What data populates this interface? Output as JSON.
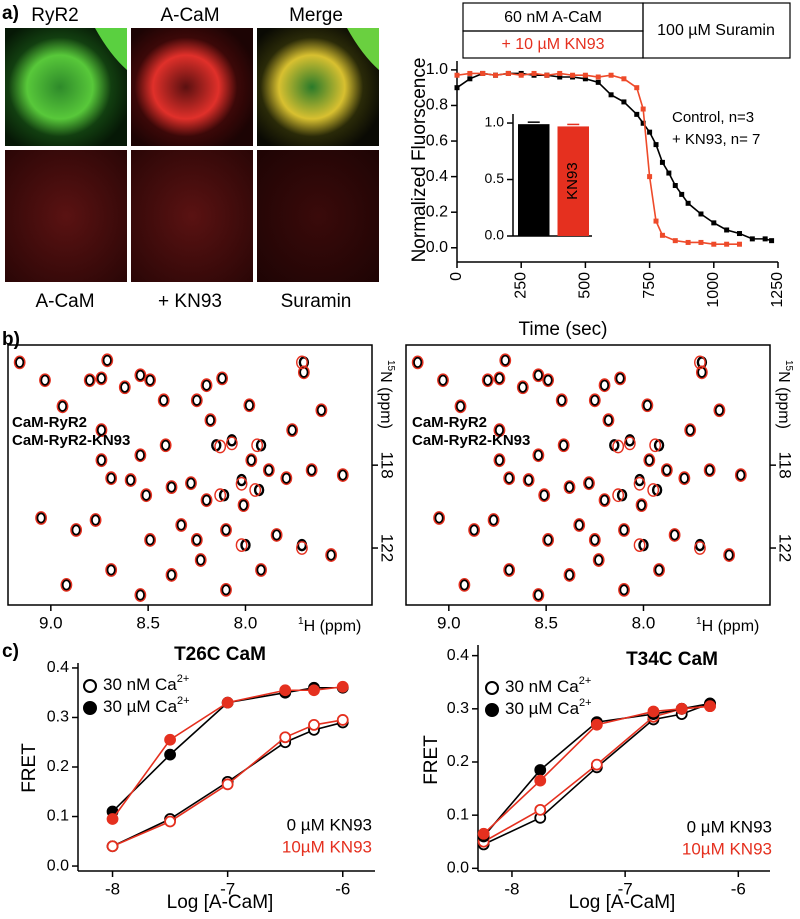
{
  "panel_labels": [
    "a)",
    "b)",
    "c)"
  ],
  "images": {
    "top_labels": [
      "RyR2",
      "A-CaM",
      "Merge"
    ],
    "bottom_labels": [
      "A-CaM",
      "+ KN93",
      "Suramin"
    ]
  },
  "chart_data": [
    {
      "type": "line",
      "x_label": "Time (sec)",
      "y_label": "Normalized Fluorscence",
      "marker": "square",
      "annotations": [
        "60 nM A-CaM",
        "+ 10 µM KN93",
        "100 µM Suramin"
      ],
      "xlim": [
        0,
        1250
      ],
      "xticks": [
        0,
        250,
        500,
        750,
        1000,
        1250
      ],
      "ylim": [
        -0.08,
        1.05
      ],
      "yticks": [
        {
          "value": 0,
          "label": "0.0"
        },
        0.2,
        0.4,
        0.6,
        0.8,
        {
          "value": 1,
          "label": "1.0"
        }
      ],
      "series": [
        {
          "name": "Control, n=3",
          "color": "#000000",
          "x": [
            0,
            50,
            100,
            150,
            200,
            250,
            300,
            350,
            400,
            450,
            500,
            550,
            600,
            650,
            700,
            725,
            750,
            775,
            800,
            825,
            850,
            875,
            900,
            950,
            1000,
            1050,
            1100,
            1150,
            1200,
            1225
          ],
          "values": [
            0.9,
            0.95,
            0.98,
            0.97,
            0.98,
            0.98,
            0.97,
            0.97,
            0.96,
            0.96,
            0.95,
            0.93,
            0.86,
            0.82,
            0.75,
            0.7,
            0.65,
            0.58,
            0.48,
            0.42,
            0.35,
            0.3,
            0.25,
            0.19,
            0.14,
            0.1,
            0.08,
            0.05,
            0.05,
            0.04
          ]
        },
        {
          "name": "+ KN93, n= 7",
          "color": "#ee4a2a",
          "x": [
            0,
            50,
            100,
            150,
            200,
            250,
            300,
            350,
            400,
            450,
            500,
            550,
            600,
            650,
            700,
            725,
            750,
            775,
            800,
            850,
            900,
            950,
            1000,
            1050,
            1100
          ],
          "values": [
            0.97,
            0.98,
            0.98,
            0.97,
            0.98,
            0.97,
            0.98,
            0.97,
            0.98,
            0.97,
            0.97,
            0.96,
            0.97,
            0.95,
            0.9,
            0.78,
            0.4,
            0.15,
            0.07,
            0.04,
            0.03,
            0.03,
            0.02,
            0.02,
            0.02
          ]
        }
      ]
    },
    {
      "type": "bar",
      "categories": [
        "Control",
        "KN93"
      ],
      "values": [
        0.99,
        0.97
      ],
      "colors": [
        "#000000",
        "#e5301f"
      ],
      "ylim": [
        0,
        1.08
      ],
      "yticks": [
        {
          "value": 0,
          "label": "0.0"
        },
        0.5,
        {
          "value": 1,
          "label": "1.0"
        }
      ]
    },
    {
      "type": "scatter",
      "x_label": {
        "sup": "1",
        "text": "H (ppm)"
      },
      "y_label": {
        "sup": "15",
        "text": "N (ppm)"
      },
      "xlim": [
        9.22,
        7.35
      ],
      "xticks": [
        {
          "value": 9,
          "label": "9.0"
        },
        8.5,
        {
          "value": 8,
          "label": "8.0"
        }
      ],
      "ylim": [
        124.75,
        112.2
      ],
      "yticks": [
        118,
        122
      ],
      "series": [
        {
          "name": "CaM-RyR2",
          "color": "#000000",
          "x": [
            9.16,
            9.03,
            8.8,
            8.74,
            8.71,
            8.62,
            8.54,
            8.49,
            8.2,
            8.12,
            7.7,
            7.7,
            8.94,
            8.74,
            8.42,
            8.25,
            8.18,
            7.98,
            8.54,
            8.41,
            8.15,
            8.07,
            7.97,
            7.92,
            8.69,
            8.59,
            8.51,
            8.38,
            8.28,
            8.2,
            8.11,
            8.02,
            8.01,
            7.93,
            7.88,
            7.79,
            7.66,
            7.5,
            8.87,
            8.77,
            8.49,
            8.33,
            8.25,
            8.1,
            8.0,
            7.84,
            7.71,
            8.69,
            8.38,
            8.23,
            7.92,
            8.92,
            8.54,
            8.1,
            7.56,
            9.05,
            7.61,
            7.76,
            8.74
          ],
          "values": [
            113.04,
            113.9,
            113.9,
            113.81,
            112.94,
            114.24,
            113.66,
            113.9,
            114.14,
            113.81,
            113.52,
            113.04,
            115.16,
            116.31,
            114.87,
            114.87,
            115.83,
            115.11,
            117.52,
            117.04,
            117.04,
            116.8,
            117.76,
            117.04,
            118.63,
            118.72,
            119.45,
            119.06,
            118.87,
            119.69,
            119.45,
            118.72,
            119.93,
            119.2,
            118.24,
            118.63,
            118.24,
            118.48,
            121.13,
            120.65,
            121.61,
            120.89,
            121.61,
            121.13,
            121.86,
            121.37,
            121.86,
            123.06,
            123.3,
            122.58,
            123.06,
            123.78,
            124.27,
            124.02,
            122.34,
            120.55,
            115.35,
            116.31,
            117.76
          ]
        },
        {
          "name": "CaM-RyR2-KN93",
          "color": "#e5301f",
          "x": [
            9.16,
            9.03,
            8.8,
            8.74,
            8.71,
            8.62,
            8.54,
            8.49,
            8.2,
            8.12,
            7.7,
            7.71,
            8.94,
            8.74,
            8.42,
            8.25,
            8.18,
            7.98,
            8.54,
            8.41,
            8.13,
            8.07,
            7.97,
            7.94,
            8.69,
            8.59,
            8.51,
            8.38,
            8.28,
            8.2,
            8.13,
            8.02,
            8.01,
            7.95,
            7.88,
            7.79,
            7.66,
            7.5,
            8.87,
            8.77,
            8.49,
            8.33,
            8.25,
            8.1,
            8.02,
            7.84,
            7.71,
            8.69,
            8.38,
            8.23,
            7.92,
            8.92,
            8.54,
            8.1,
            7.56,
            9.05,
            7.61,
            7.76,
            8.74
          ],
          "values": [
            113.04,
            113.9,
            113.9,
            113.81,
            112.94,
            114.24,
            113.66,
            113.9,
            114.14,
            113.81,
            113.52,
            113.04,
            115.16,
            116.31,
            114.87,
            114.87,
            115.83,
            115.11,
            117.52,
            117.04,
            117.1,
            116.95,
            117.76,
            117.04,
            118.63,
            118.72,
            119.45,
            119.06,
            118.87,
            119.69,
            119.45,
            118.9,
            119.93,
            119.2,
            118.24,
            118.63,
            118.24,
            118.48,
            121.13,
            120.65,
            121.61,
            120.89,
            121.61,
            121.13,
            121.86,
            121.37,
            122.0,
            123.06,
            123.3,
            122.58,
            123.06,
            123.78,
            124.27,
            124.02,
            122.34,
            120.55,
            115.35,
            116.31,
            117.76
          ]
        }
      ]
    },
    {
      "type": "scatter",
      "x_label": {
        "sup": "1",
        "text": "H (ppm)"
      },
      "y_label": {
        "sup": "15",
        "text": "N (ppm)"
      },
      "xlim": [
        9.22,
        7.35
      ],
      "xticks": [
        {
          "value": 9,
          "label": "9.0"
        },
        8.5,
        {
          "value": 8,
          "label": "8.0"
        }
      ],
      "ylim": [
        124.75,
        112.2
      ],
      "yticks": [
        118,
        122
      ],
      "series": [
        {
          "name": "CaM-RyR2",
          "color": "#000000",
          "x": [
            9.16,
            9.03,
            8.8,
            8.74,
            8.71,
            8.62,
            8.54,
            8.49,
            8.2,
            8.12,
            7.7,
            7.7,
            8.94,
            8.74,
            8.42,
            8.25,
            8.18,
            7.98,
            8.54,
            8.41,
            8.15,
            8.07,
            7.97,
            7.92,
            8.69,
            8.59,
            8.51,
            8.38,
            8.28,
            8.2,
            8.11,
            8.02,
            8.01,
            7.93,
            7.88,
            7.79,
            7.66,
            7.5,
            8.87,
            8.77,
            8.49,
            8.33,
            8.25,
            8.1,
            8.0,
            7.84,
            7.71,
            8.69,
            8.38,
            8.23,
            7.92,
            8.92,
            8.54,
            8.1,
            7.56,
            9.05,
            7.61,
            7.76,
            8.74
          ],
          "values": [
            113.04,
            113.9,
            113.9,
            113.81,
            112.94,
            114.24,
            113.66,
            113.9,
            114.14,
            113.81,
            113.52,
            113.04,
            115.16,
            116.31,
            114.87,
            114.87,
            115.83,
            115.11,
            117.52,
            117.04,
            117.04,
            116.8,
            117.76,
            117.04,
            118.63,
            118.72,
            119.45,
            119.06,
            118.87,
            119.69,
            119.45,
            118.72,
            119.93,
            119.2,
            118.24,
            118.63,
            118.24,
            118.48,
            121.13,
            120.65,
            121.61,
            120.89,
            121.61,
            121.13,
            121.86,
            121.37,
            121.86,
            123.06,
            123.3,
            122.58,
            123.06,
            123.78,
            124.27,
            124.02,
            122.34,
            120.55,
            115.35,
            116.31,
            117.76
          ]
        },
        {
          "name": "CaM-RyR2-KN93",
          "color": "#e5301f",
          "x": [
            9.16,
            9.03,
            8.8,
            8.74,
            8.71,
            8.62,
            8.54,
            8.49,
            8.2,
            8.12,
            7.7,
            7.71,
            8.94,
            8.74,
            8.42,
            8.25,
            8.18,
            7.98,
            8.54,
            8.41,
            8.13,
            8.07,
            7.97,
            7.94,
            8.69,
            8.59,
            8.51,
            8.38,
            8.28,
            8.2,
            8.13,
            8.02,
            8.01,
            7.95,
            7.88,
            7.79,
            7.66,
            7.5,
            8.87,
            8.77,
            8.49,
            8.33,
            8.25,
            8.1,
            8.02,
            7.84,
            7.71,
            8.69,
            8.38,
            8.23,
            7.92,
            8.92,
            8.54,
            8.1,
            7.56,
            9.05,
            7.61,
            7.76,
            8.74
          ],
          "values": [
            113.04,
            113.9,
            113.9,
            113.81,
            112.94,
            114.24,
            113.66,
            113.9,
            114.14,
            113.81,
            113.52,
            113.04,
            115.16,
            116.31,
            114.87,
            114.87,
            115.83,
            115.11,
            117.52,
            117.04,
            117.1,
            116.95,
            117.76,
            117.04,
            118.63,
            118.72,
            119.45,
            119.06,
            118.87,
            119.69,
            119.45,
            118.9,
            119.93,
            119.2,
            118.24,
            118.63,
            118.24,
            118.48,
            121.13,
            120.65,
            121.61,
            120.89,
            121.61,
            121.13,
            121.86,
            121.37,
            122.0,
            123.06,
            123.3,
            122.58,
            123.06,
            123.78,
            124.27,
            124.02,
            122.34,
            120.55,
            115.35,
            116.31,
            117.76
          ]
        }
      ]
    },
    {
      "type": "line",
      "title": "T26C CaM",
      "x_label": "Log [A-CaM]",
      "y_label": "FRET",
      "marker": "circle",
      "marker_legend": [
        {
          "text": "30 nM Ca",
          "sup": "2+",
          "filled": false
        },
        {
          "text": "30 µM Ca",
          "sup": "2+",
          "filled": true
        }
      ],
      "color_legend": [
        {
          "label": "0 µM KN93",
          "color": "#000000"
        },
        {
          "label": "10µM KN93",
          "color": "#e5301f"
        }
      ],
      "xlim": [
        -8.3,
        -5.72
      ],
      "xticks": [
        -8,
        -7,
        -6
      ],
      "ylim": [
        -0.01,
        0.41
      ],
      "yticks": [
        {
          "value": 0,
          "label": "0.0"
        },
        0.1,
        0.2,
        0.3,
        0.4
      ],
      "x": [
        -8,
        -7.5,
        -7,
        -6.5,
        -6.25,
        -6
      ],
      "series": [
        {
          "color": "#000000",
          "filled": false,
          "values": [
            0.04,
            0.095,
            0.17,
            0.25,
            0.275,
            0.29
          ]
        },
        {
          "color": "#e5301f",
          "filled": false,
          "values": [
            0.04,
            0.09,
            0.165,
            0.26,
            0.285,
            0.295
          ]
        },
        {
          "color": "#000000",
          "filled": true,
          "values": [
            0.11,
            0.225,
            0.33,
            0.35,
            0.36,
            0.36
          ]
        },
        {
          "color": "#e5301f",
          "filled": true,
          "values": [
            0.095,
            0.255,
            0.33,
            0.355,
            0.355,
            0.362
          ]
        }
      ]
    },
    {
      "type": "line",
      "title": "T34C CaM",
      "x_label": "Log [A-CaM]",
      "y_label": "FRET",
      "marker": "circle",
      "marker_legend": [
        {
          "text": "30 nM Ca",
          "sup": "2+",
          "filled": false
        },
        {
          "text": "30 µM Ca",
          "sup": "2+",
          "filled": true
        }
      ],
      "color_legend": [
        {
          "label": "0 µM KN93",
          "color": "#000000"
        },
        {
          "label": "10µM KN93",
          "color": "#e5301f"
        }
      ],
      "xlim": [
        -8.3,
        -5.72
      ],
      "xticks": [
        -8,
        -7,
        -6
      ],
      "ylim": [
        -0.005,
        0.42
      ],
      "yticks": [
        {
          "value": 0,
          "label": "0.0"
        },
        0.1,
        0.2,
        0.3,
        0.4
      ],
      "x": [
        -8.25,
        -7.75,
        -7.25,
        -6.75,
        -6.5,
        -6.25
      ],
      "series": [
        {
          "color": "#000000",
          "filled": false,
          "values": [
            0.045,
            0.095,
            0.19,
            0.28,
            0.29,
            0.31
          ]
        },
        {
          "color": "#e5301f",
          "filled": false,
          "values": [
            0.05,
            0.11,
            0.195,
            0.285,
            0.3,
            0.305
          ]
        },
        {
          "color": "#000000",
          "filled": true,
          "values": [
            0.06,
            0.185,
            0.275,
            0.29,
            0.3,
            0.31
          ]
        },
        {
          "color": "#e5301f",
          "filled": true,
          "values": [
            0.065,
            0.165,
            0.27,
            0.295,
            0.3,
            0.305
          ]
        }
      ]
    }
  ]
}
